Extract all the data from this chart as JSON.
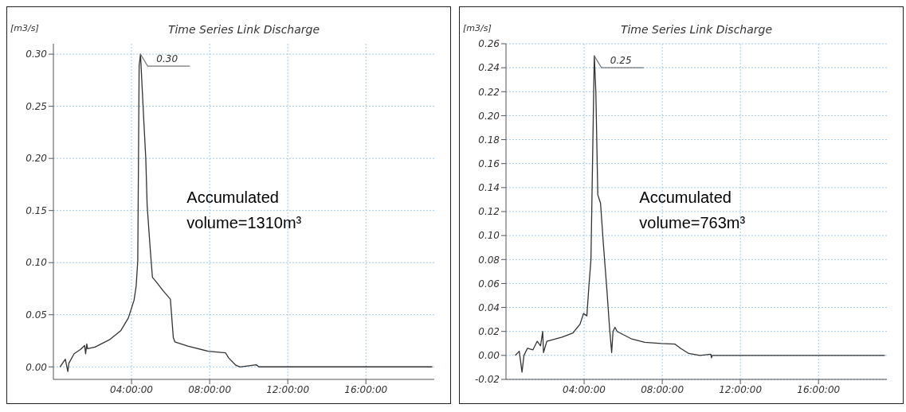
{
  "chart_data": [
    {
      "type": "line",
      "title": "Time Series Link Discharge",
      "ylabel": "[m3/s]",
      "series": [
        {
          "color": "#333333",
          "x": [
            0.34,
            0.61,
            0.74,
            0.79,
            1.06,
            1.38,
            1.6,
            1.65,
            1.71,
            1.75,
            2.13,
            2.87,
            3.46,
            3.84,
            4.13,
            4.24,
            4.32,
            4.39,
            4.46,
            4.61,
            4.73,
            4.8,
            4.95,
            5.07,
            5.25,
            5.62,
            5.99,
            6.14,
            6.22,
            6.88,
            7.93,
            8.82,
            8.97,
            9.34,
            9.56,
            10.38,
            10.53,
            19.4
          ],
          "values": [
            0,
            0.0074,
            -0.0045,
            0.0034,
            0.0126,
            0.0166,
            0.0205,
            0.0126,
            0.022,
            0.0174,
            0.019,
            0.026,
            0.035,
            0.047,
            0.064,
            0.078,
            0.102,
            0.289,
            0.3,
            0.243,
            0.2,
            0.155,
            0.115,
            0.086,
            0.082,
            0.073,
            0.065,
            0.028,
            0.024,
            0.02,
            0.015,
            0.0134,
            0.0087,
            0.0016,
            0,
            0.002,
            0,
            0
          ]
        }
      ],
      "xlim": [
        0,
        19.5
      ],
      "xticks": [
        {
          "value": 4,
          "label": "04:00:00"
        },
        {
          "value": 8,
          "label": "08:00:00"
        },
        {
          "value": 12,
          "label": "12:00:00"
        },
        {
          "value": 16,
          "label": "16:00:00"
        }
      ],
      "ylim": [
        -0.012,
        0.31
      ],
      "yticks": [
        {
          "value": 0,
          "label": "0.00"
        },
        {
          "value": 0.05,
          "label": "0.05"
        },
        {
          "value": 0.1,
          "label": "0.10"
        },
        {
          "value": 0.15,
          "label": "0.15"
        },
        {
          "value": 0.2,
          "label": "0.20"
        },
        {
          "value": 0.25,
          "label": "0.25"
        },
        {
          "value": 0.3,
          "label": "0.30"
        }
      ],
      "grid": true,
      "line_style": "solid",
      "annotations": [
        {
          "text": "0.30",
          "x": 4.46,
          "y": 0.3
        },
        "Accumulated volume=1310m³"
      ]
    },
    {
      "type": "line",
      "title": "Time Series Link Discharge",
      "ylabel": "[m3/s]",
      "series": [
        {
          "color": "#333333",
          "x": [
            0.47,
            0.68,
            0.82,
            0.92,
            1.1,
            1.38,
            1.6,
            1.77,
            1.88,
            1.92,
            2.09,
            2.87,
            3.43,
            3.79,
            3.97,
            4.14,
            4.25,
            4.35,
            4.47,
            4.52,
            4.6,
            4.7,
            4.84,
            4.99,
            5.16,
            5.3,
            5.41,
            5.48,
            5.58,
            5.69,
            6.4,
            7.1,
            7.95,
            8.66,
            8.94,
            9.36,
            9.93,
            10.49,
            10.52,
            10.56,
            19.4
          ],
          "values": [
            0,
            0.0035,
            -0.014,
            0,
            0.006,
            0.0047,
            0.0118,
            0.008,
            0.02,
            0.0024,
            0.0118,
            0.0153,
            0.0188,
            0.026,
            0.035,
            0.033,
            0.059,
            0.08,
            0.2,
            0.25,
            0.22,
            0.134,
            0.127,
            0.092,
            0.056,
            0.0235,
            0.0024,
            0.02,
            0.0235,
            0.02,
            0.014,
            0.011,
            0.0099,
            0.0094,
            0.0059,
            0.0016,
            0,
            0.001,
            -0.002,
            0,
            0
          ]
        }
      ],
      "xlim": [
        0,
        19.5
      ],
      "xticks": [
        {
          "value": 4,
          "label": "04:00:00"
        },
        {
          "value": 8,
          "label": "08:00:00"
        },
        {
          "value": 12,
          "label": "12:00:00"
        },
        {
          "value": 16,
          "label": "16:00:00"
        }
      ],
      "ylim": [
        -0.02,
        0.26
      ],
      "yticks": [
        {
          "value": -0.02,
          "label": "-0.02"
        },
        {
          "value": 0,
          "label": "0.00"
        },
        {
          "value": 0.02,
          "label": "0.02"
        },
        {
          "value": 0.04,
          "label": "0.04"
        },
        {
          "value": 0.06,
          "label": "0.06"
        },
        {
          "value": 0.08,
          "label": "0.08"
        },
        {
          "value": 0.1,
          "label": "0.10"
        },
        {
          "value": 0.12,
          "label": "0.12"
        },
        {
          "value": 0.14,
          "label": "0.14"
        },
        {
          "value": 0.16,
          "label": "0.16"
        },
        {
          "value": 0.18,
          "label": "0.18"
        },
        {
          "value": 0.2,
          "label": "0.20"
        },
        {
          "value": 0.22,
          "label": "0.22"
        },
        {
          "value": 0.24,
          "label": "0.24"
        },
        {
          "value": 0.26,
          "label": "0.26"
        }
      ],
      "grid": true,
      "line_style": "solid",
      "annotations": [
        {
          "text": "0.25",
          "x": 4.52,
          "y": 0.25
        },
        "Accumulated volume=763m³"
      ]
    }
  ]
}
